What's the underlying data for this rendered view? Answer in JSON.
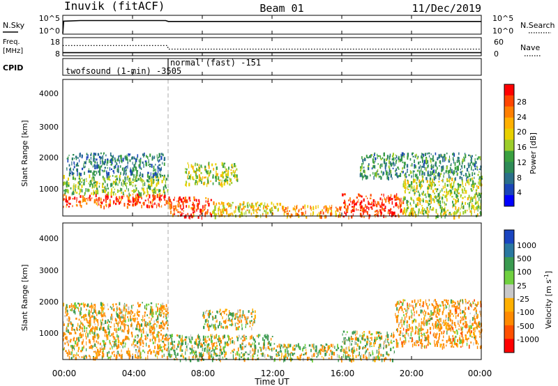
{
  "header": {
    "station": "Inuvik (fitACF)",
    "beam": "Beam 01",
    "date": "11/Dec/2019"
  },
  "nsky_panel": {
    "left_label": "N.Sky",
    "right_label": "N.Search",
    "left_ticks": [
      "10^5",
      "10^0"
    ],
    "right_ticks": [
      "10^5",
      "10^0"
    ]
  },
  "freq_panel": {
    "left_label_1": "Freq.",
    "left_label_2": "[MHz]",
    "right_label": "Nave",
    "left_ticks": [
      "18",
      "8"
    ],
    "right_ticks": [
      "60",
      "0"
    ]
  },
  "cpid_panel": {
    "label": "CPID",
    "mode_1": "twofsound (1-min) -3505",
    "mode_2": "normal (fast) -151"
  },
  "power_panel": {
    "ylabel": "Slant Range [km]",
    "yticks": [
      "4000",
      "3000",
      "2000",
      "1000"
    ],
    "colorbar_label": "Power [dB]",
    "colorbar_ticks": [
      "28",
      "24",
      "20",
      "16",
      "12",
      "8",
      "4"
    ],
    "colorbar_colors": [
      "#ff0000",
      "#ff4500",
      "#ff7f00",
      "#ffb000",
      "#e8d000",
      "#9ccd2a",
      "#3aa040",
      "#2e8b57",
      "#2a6f8a",
      "#1a45b8",
      "#0000ff"
    ]
  },
  "velocity_panel": {
    "ylabel": "Slant Range [km]",
    "yticks": [
      "4000",
      "3000",
      "2000",
      "1000"
    ],
    "colorbar_label": "Velocity [m s",
    "colorbar_label_exp": "-1",
    "colorbar_label_end": "]",
    "colorbar_ticks": [
      "1000",
      "500",
      "100",
      "25",
      "-25",
      "-100",
      "-500",
      "-1000"
    ],
    "colorbar_colors": [
      "#1a45c0",
      "#2a78a0",
      "#3a9a50",
      "#70d040",
      "#c8c8c8",
      "#ffb000",
      "#ff8a00",
      "#ff5000",
      "#ff0000"
    ]
  },
  "xaxis": {
    "ticks": [
      "00:00",
      "04:00",
      "08:00",
      "12:00",
      "16:00",
      "20:00",
      "00:00"
    ],
    "label": "Time UT"
  },
  "chart_data": [
    {
      "type": "line",
      "title": "N.Sky / N.Search",
      "x_unit": "hours UT",
      "xlim": [
        0,
        24
      ],
      "series": [
        {
          "name": "N.Sky",
          "x": [
            0,
            0.05,
            1,
            3,
            5.9,
            6.05,
            8,
            12,
            16,
            20,
            24
          ],
          "y": [
            0,
            4.0,
            4.2,
            4.2,
            4.2,
            3.9,
            3.9,
            3.9,
            3.9,
            3.9,
            3.9
          ]
        }
      ]
    },
    {
      "type": "line",
      "title": "Freq. / Nave",
      "x_unit": "hours UT",
      "xlim": [
        0,
        24
      ],
      "series": [
        {
          "name": "Freq.",
          "x": [
            0,
            6,
            24
          ],
          "y": [
            10,
            10,
            10
          ]
        },
        {
          "name": "Nave",
          "x": [
            0,
            6,
            6.05,
            24
          ],
          "y": [
            48,
            48,
            30,
            30
          ]
        }
      ]
    },
    {
      "type": "heatmap",
      "title": "Power [dB]",
      "x_unit": "hours UT",
      "y_unit": "km",
      "xlim": [
        0,
        24
      ],
      "ylim": [
        180,
        4500
      ],
      "zlim": [
        0,
        30
      ],
      "regions": [
        {
          "x0": 0.0,
          "x1": 6.0,
          "y0": 500,
          "y1": 900,
          "z": 26
        },
        {
          "x0": 0.0,
          "x1": 6.0,
          "y0": 900,
          "y1": 1500,
          "z": 14
        },
        {
          "x0": 0.2,
          "x1": 5.8,
          "y0": 1500,
          "y1": 2200,
          "z": 8
        },
        {
          "x0": 6.0,
          "x1": 8.5,
          "y0": 180,
          "y1": 800,
          "z": 26
        },
        {
          "x0": 8.5,
          "x1": 12.5,
          "y0": 180,
          "y1": 650,
          "z": 18
        },
        {
          "x0": 12.5,
          "x1": 16.0,
          "y0": 180,
          "y1": 550,
          "z": 22
        },
        {
          "x0": 16.0,
          "x1": 19.5,
          "y0": 180,
          "y1": 900,
          "z": 27
        },
        {
          "x0": 19.5,
          "x1": 24.0,
          "y0": 180,
          "y1": 1400,
          "z": 16
        },
        {
          "x0": 17.0,
          "x1": 24.0,
          "y0": 1400,
          "y1": 2200,
          "z": 10
        },
        {
          "x0": 7.0,
          "x1": 10.0,
          "y0": 1200,
          "y1": 1900,
          "z": 16
        }
      ]
    },
    {
      "type": "heatmap",
      "title": "Velocity [m s-1]",
      "x_unit": "hours UT",
      "y_unit": "km",
      "xlim": [
        0,
        24
      ],
      "ylim": [
        180,
        4500
      ],
      "zlim": [
        -1000,
        1000
      ],
      "regions": [
        {
          "x0": 0.0,
          "x1": 6.0,
          "y0": 250,
          "y1": 2000,
          "z": -150
        },
        {
          "x0": 6.0,
          "x1": 12.0,
          "y0": 180,
          "y1": 1000,
          "z": 80
        },
        {
          "x0": 12.0,
          "x1": 16.0,
          "y0": 180,
          "y1": 700,
          "z": 60
        },
        {
          "x0": 16.0,
          "x1": 19.0,
          "y0": 180,
          "y1": 1100,
          "z": 50
        },
        {
          "x0": 19.0,
          "x1": 24.0,
          "y0": 600,
          "y1": 2100,
          "z": -200
        },
        {
          "x0": 8.0,
          "x1": 11.0,
          "y0": 1200,
          "y1": 1800,
          "z": 20
        }
      ]
    }
  ]
}
